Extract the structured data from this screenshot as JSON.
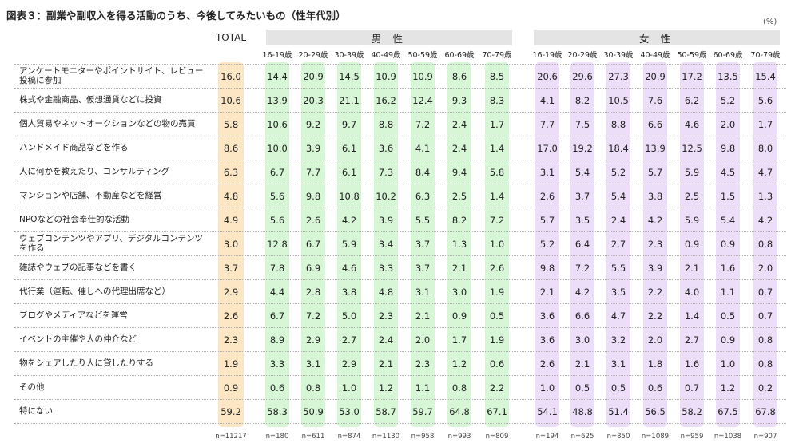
{
  "title": "図表３：副業や副収入を得る活動のうち、今後してみたいもの（性年代別）",
  "unit": "(%)",
  "colors": {
    "total": "#fde6c4",
    "male": "#d6f6d6",
    "female": "#ecdef8",
    "header": "#e4e4e4"
  },
  "chart_data": {
    "type": "table",
    "total_label": "TOTAL",
    "groups": [
      {
        "name": "男性",
        "label": "男 性",
        "ages": [
          "16-19歳",
          "20-29歳",
          "30-39歳",
          "40-49歳",
          "50-59歳",
          "60-69歳",
          "70-79歳"
        ]
      },
      {
        "name": "女性",
        "label": "女 性",
        "ages": [
          "16-19歳",
          "20-29歳",
          "30-39歳",
          "40-49歳",
          "50-59歳",
          "60-69歳",
          "70-79歳"
        ]
      }
    ],
    "rows": [
      {
        "label": "アンケートモニターやポイントサイト、レビュー投稿に参加",
        "values": [
          "16.0",
          "14.4",
          "20.9",
          "14.5",
          "10.9",
          "10.9",
          "8.6",
          "8.5",
          "20.6",
          "29.6",
          "27.3",
          "20.9",
          "17.2",
          "13.5",
          "15.4"
        ]
      },
      {
        "label": "株式や金融商品、仮想通貨などに投資",
        "values": [
          "10.6",
          "13.9",
          "20.3",
          "21.1",
          "16.2",
          "12.4",
          "9.3",
          "8.3",
          "4.1",
          "8.2",
          "10.5",
          "7.6",
          "6.2",
          "5.2",
          "5.6"
        ]
      },
      {
        "label": "個人貿易やネットオークションなどの物の売買",
        "values": [
          "5.8",
          "10.6",
          "9.2",
          "9.7",
          "8.8",
          "7.2",
          "2.4",
          "1.7",
          "7.7",
          "7.5",
          "8.8",
          "6.6",
          "4.6",
          "2.0",
          "1.7"
        ]
      },
      {
        "label": "ハンドメイド商品などを作る",
        "values": [
          "8.6",
          "10.0",
          "3.9",
          "6.1",
          "3.6",
          "4.1",
          "2.4",
          "1.4",
          "17.0",
          "19.2",
          "18.4",
          "13.9",
          "12.5",
          "9.8",
          "8.0"
        ]
      },
      {
        "label": "人に何かを教えたり、コンサルティング",
        "values": [
          "6.3",
          "6.7",
          "7.7",
          "6.1",
          "7.3",
          "8.4",
          "9.4",
          "5.8",
          "3.1",
          "5.4",
          "5.2",
          "5.7",
          "5.9",
          "4.5",
          "4.7"
        ]
      },
      {
        "label": "マンションや店舗、不動産などを経営",
        "values": [
          "4.8",
          "5.6",
          "9.8",
          "10.8",
          "10.2",
          "6.3",
          "2.5",
          "1.4",
          "2.6",
          "3.7",
          "5.4",
          "3.8",
          "2.5",
          "1.5",
          "1.3"
        ]
      },
      {
        "label": "NPOなどの社会奉仕的な活動",
        "values": [
          "4.9",
          "5.6",
          "2.6",
          "4.2",
          "3.9",
          "5.5",
          "8.2",
          "7.2",
          "5.7",
          "3.5",
          "2.4",
          "4.2",
          "5.9",
          "5.4",
          "4.2"
        ]
      },
      {
        "label": "ウェブコンテンツやアプリ、デジタルコンテンツを作る",
        "values": [
          "3.0",
          "12.8",
          "6.7",
          "5.9",
          "3.4",
          "3.7",
          "1.3",
          "1.0",
          "5.2",
          "6.4",
          "2.7",
          "2.3",
          "0.9",
          "0.9",
          "0.8"
        ]
      },
      {
        "label": "雑誌やウェブの記事などを書く",
        "values": [
          "3.7",
          "7.8",
          "6.9",
          "4.6",
          "3.3",
          "3.7",
          "2.1",
          "2.6",
          "9.8",
          "7.2",
          "5.5",
          "3.9",
          "2.1",
          "1.6",
          "2.0"
        ]
      },
      {
        "label": "代行業（運転、催しへの代理出席など）",
        "values": [
          "2.9",
          "4.4",
          "2.8",
          "3.8",
          "4.8",
          "3.1",
          "3.0",
          "1.9",
          "2.1",
          "4.2",
          "3.5",
          "2.2",
          "4.0",
          "1.1",
          "0.7"
        ]
      },
      {
        "label": "ブログやメディアなどを運営",
        "values": [
          "2.6",
          "6.7",
          "7.2",
          "5.0",
          "2.3",
          "2.1",
          "0.9",
          "0.5",
          "3.6",
          "6.6",
          "4.7",
          "2.2",
          "1.4",
          "0.5",
          "0.7"
        ]
      },
      {
        "label": "イベントの主催や人の仲介など",
        "values": [
          "2.3",
          "8.9",
          "2.9",
          "2.7",
          "2.4",
          "2.0",
          "1.7",
          "1.9",
          "3.6",
          "3.0",
          "3.2",
          "2.0",
          "2.7",
          "0.9",
          "0.8"
        ]
      },
      {
        "label": "物をシェアしたり人に貸したりする",
        "values": [
          "1.9",
          "3.3",
          "3.1",
          "2.9",
          "2.1",
          "2.3",
          "1.2",
          "0.6",
          "2.6",
          "2.1",
          "3.1",
          "1.8",
          "1.6",
          "1.0",
          "0.8"
        ]
      },
      {
        "label": "その他",
        "values": [
          "0.9",
          "0.6",
          "0.8",
          "1.0",
          "1.2",
          "1.1",
          "0.8",
          "2.2",
          "1.0",
          "0.5",
          "0.5",
          "0.6",
          "0.7",
          "1.2",
          "0.2"
        ]
      },
      {
        "label": "特にない",
        "values": [
          "59.2",
          "58.3",
          "50.9",
          "53.0",
          "58.7",
          "59.7",
          "64.8",
          "67.1",
          "54.1",
          "48.8",
          "51.4",
          "56.5",
          "58.2",
          "67.5",
          "67.8"
        ]
      }
    ],
    "n": [
      "n=11217",
      "n=180",
      "n=611",
      "n=874",
      "n=1130",
      "n=958",
      "n=993",
      "n=809",
      "n=194",
      "n=625",
      "n=850",
      "n=1089",
      "n=959",
      "n=1038",
      "n=907"
    ]
  }
}
